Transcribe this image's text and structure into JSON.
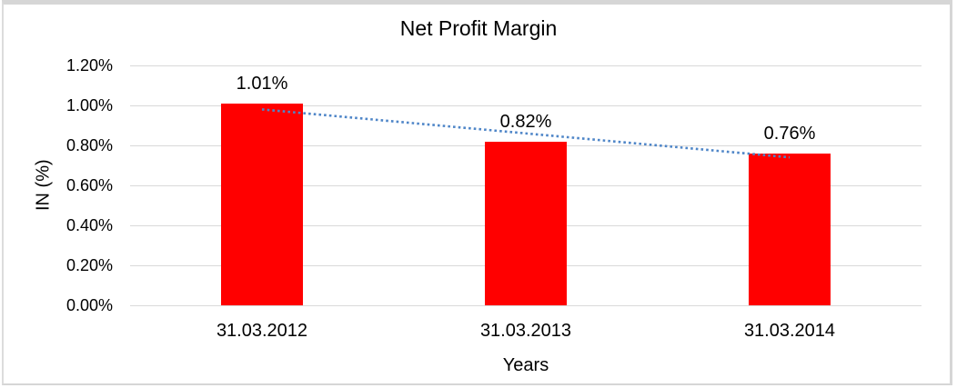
{
  "chart_data": {
    "type": "bar",
    "title": "Net Profit Margin",
    "xlabel": "Years",
    "ylabel": "IN (%)",
    "categories": [
      "31.03.2012",
      "31.03.2013",
      "31.03.2014"
    ],
    "values": [
      1.01,
      0.82,
      0.76
    ],
    "data_labels": [
      "1.01%",
      "0.82%",
      "0.76%"
    ],
    "ylim": [
      0,
      1.2
    ],
    "yticks": [
      {
        "value": 1.2,
        "label": "1.20%"
      },
      {
        "value": 1.0,
        "label": "1.00%"
      },
      {
        "value": 0.8,
        "label": "0.80%"
      },
      {
        "value": 0.6,
        "label": "0.60%"
      },
      {
        "value": 0.4,
        "label": "0.40%"
      },
      {
        "value": 0.2,
        "label": "0.20%"
      },
      {
        "value": 0.0,
        "label": "0.00%"
      }
    ],
    "grid": "horizontal",
    "legend": "none",
    "bar_color": "#ff0000",
    "trendline": {
      "type": "linear",
      "style": "dotted",
      "color": "#4f86c8",
      "start_value": 0.98,
      "end_value": 0.74
    }
  },
  "colors": {
    "background": "#ffffff",
    "gridline": "#d9d9d9",
    "frame_border": "#d6d6d6",
    "text": "#000000"
  }
}
